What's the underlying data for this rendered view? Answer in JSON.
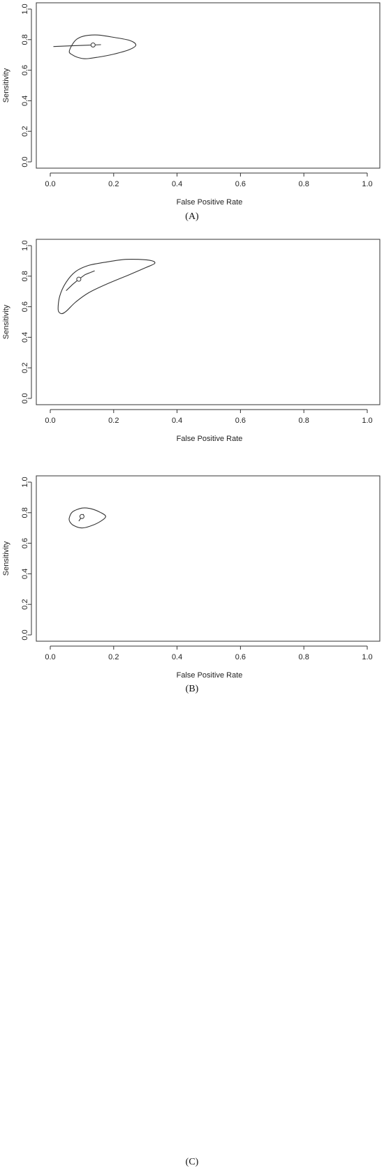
{
  "chart_data": [
    {
      "type": "scatter",
      "panel": "A",
      "caption": "(A)",
      "xlabel": "False Positive Rate",
      "ylabel": "Sensitivity",
      "xlim": [
        0,
        1
      ],
      "ylim": [
        0,
        1
      ],
      "xticks": [
        "0.0",
        "0.2",
        "0.4",
        "0.6",
        "0.8",
        "1.0"
      ],
      "yticks": [
        "0.0",
        "0.2",
        "0.4",
        "0.6",
        "0.8",
        "1.0"
      ],
      "summary_point": {
        "x": 0.135,
        "y": 0.765
      },
      "sroc_curve": [
        [
          0.01,
          0.755
        ],
        [
          0.07,
          0.76
        ],
        [
          0.135,
          0.765
        ],
        [
          0.16,
          0.767
        ]
      ],
      "confidence_region": [
        [
          0.06,
          0.72
        ],
        [
          0.07,
          0.77
        ],
        [
          0.085,
          0.805
        ],
        [
          0.11,
          0.825
        ],
        [
          0.15,
          0.83
        ],
        [
          0.2,
          0.815
        ],
        [
          0.25,
          0.795
        ],
        [
          0.27,
          0.765
        ],
        [
          0.25,
          0.735
        ],
        [
          0.2,
          0.705
        ],
        [
          0.15,
          0.685
        ],
        [
          0.11,
          0.675
        ],
        [
          0.085,
          0.685
        ],
        [
          0.07,
          0.7
        ]
      ]
    },
    {
      "type": "scatter",
      "panel": "B",
      "caption": "(B)",
      "xlabel": "False Positive Rate",
      "ylabel": "Sensitivity",
      "xlim": [
        0,
        1
      ],
      "ylim": [
        0,
        1
      ],
      "xticks": [
        "0.0",
        "0.2",
        "0.4",
        "0.6",
        "0.8",
        "1.0"
      ],
      "yticks": [
        "0.0",
        "0.2",
        "0.4",
        "0.6",
        "0.8",
        "1.0"
      ],
      "summary_point": {
        "x": 0.09,
        "y": 0.78
      },
      "sroc_curve": [
        [
          0.05,
          0.705
        ],
        [
          0.07,
          0.745
        ],
        [
          0.09,
          0.78
        ],
        [
          0.11,
          0.81
        ],
        [
          0.14,
          0.835
        ]
      ],
      "confidence_region": [
        [
          0.025,
          0.58
        ],
        [
          0.03,
          0.67
        ],
        [
          0.05,
          0.76
        ],
        [
          0.08,
          0.83
        ],
        [
          0.12,
          0.87
        ],
        [
          0.17,
          0.89
        ],
        [
          0.24,
          0.91
        ],
        [
          0.31,
          0.905
        ],
        [
          0.33,
          0.885
        ],
        [
          0.3,
          0.855
        ],
        [
          0.25,
          0.81
        ],
        [
          0.18,
          0.75
        ],
        [
          0.12,
          0.69
        ],
        [
          0.08,
          0.63
        ],
        [
          0.05,
          0.57
        ],
        [
          0.035,
          0.555
        ]
      ]
    },
    {
      "type": "scatter",
      "panel": "C",
      "caption": "(C)",
      "xlabel": "False Positive Rate",
      "ylabel": "Sensitivity",
      "xlim": [
        0,
        1
      ],
      "ylim": [
        0,
        1
      ],
      "xticks": [
        "0.0",
        "0.2",
        "0.4",
        "0.6",
        "0.8",
        "1.0"
      ],
      "yticks": [
        "0.0",
        "0.2",
        "0.4",
        "0.6",
        "0.8",
        "1.0"
      ],
      "summary_point": {
        "x": 0.1,
        "y": 0.775
      },
      "sroc_curve": [
        [
          0.09,
          0.745
        ],
        [
          0.1,
          0.775
        ],
        [
          0.105,
          0.79
        ]
      ],
      "confidence_region": [
        [
          0.06,
          0.765
        ],
        [
          0.07,
          0.805
        ],
        [
          0.1,
          0.83
        ],
        [
          0.13,
          0.825
        ],
        [
          0.16,
          0.8
        ],
        [
          0.175,
          0.775
        ],
        [
          0.16,
          0.745
        ],
        [
          0.13,
          0.715
        ],
        [
          0.1,
          0.7
        ],
        [
          0.075,
          0.715
        ],
        [
          0.062,
          0.74
        ]
      ]
    }
  ]
}
